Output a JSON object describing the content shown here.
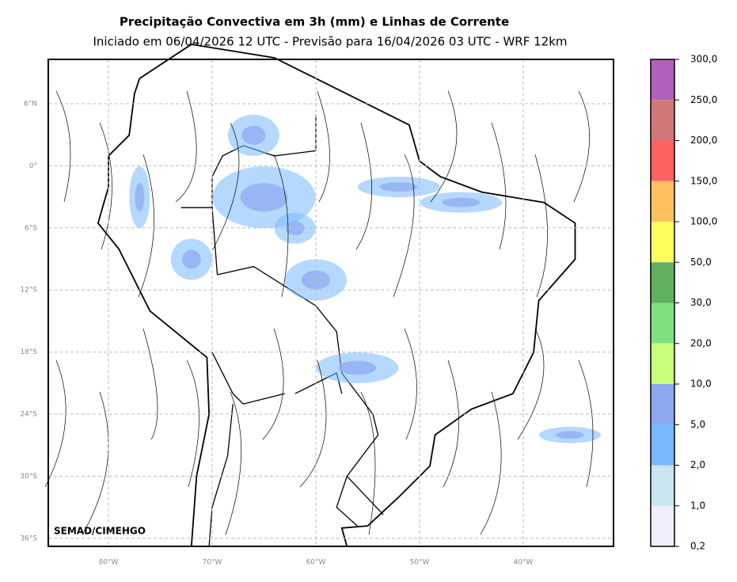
{
  "title": "Precipitação Convectiva em 3h (mm) e Linhas de Corrente",
  "subtitle": "Iniciado em 06/04/2026 12 UTC - Previsão para 16/04/2026 03 UTC - WRF 12km",
  "latitude_labels": [
    "6°N",
    "0°",
    "6°S",
    "12°S",
    "18°S",
    "24°S",
    "30°S",
    "36°S"
  ],
  "longitude_labels": [
    "80°W",
    "70°W",
    "60°W",
    "50°W",
    "40°W"
  ],
  "colorbar": {
    "labels": [
      "300,0",
      "250,0",
      "200,0",
      "150,0",
      "100,0",
      "50,0",
      "30,0",
      "20,0",
      "10,0",
      "5,0",
      "2,0",
      "1,0",
      "0,2"
    ],
    "colors": [
      "#b060b8",
      "#d07878",
      "#ff6060",
      "#ffc060",
      "#ffff60",
      "#60b060",
      "#80e080",
      "#c8ff78",
      "#8ca8f0",
      "#78b8ff",
      "#c8e4ee",
      "#eeeefc"
    ]
  },
  "watermark": "SEMAD/CIMEHGO"
}
